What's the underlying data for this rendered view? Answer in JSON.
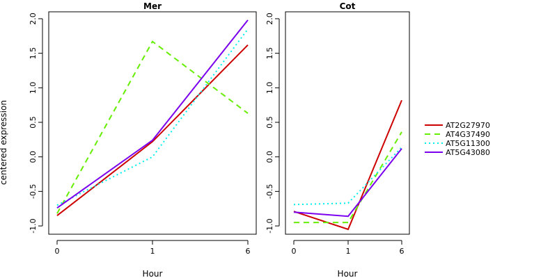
{
  "colors": {
    "AT2G27970": "#cd0000",
    "AT4G37490": "#66ee00",
    "AT5G11300": "#00eeee",
    "AT5G43080": "#7a00ee"
  },
  "chart_data": {
    "type": "line",
    "ylabel": "centered expression",
    "legend": {
      "placement": "right",
      "entries": [
        "AT2G27970",
        "AT4G37490",
        "AT5G11300",
        "AT5G43080"
      ]
    },
    "panels": [
      {
        "title": "Mer",
        "xlabel": "Hour",
        "x_ticks": [
          "0",
          "1",
          "6"
        ],
        "ylim": [
          -1.0,
          2.0
        ],
        "y_ticks": [
          "-1.0",
          "-0.5",
          "0.0",
          "0.5",
          "1.0",
          "1.5",
          "2.0"
        ],
        "series": [
          {
            "name": "AT2G27970",
            "values": [
              -0.85,
              0.22,
              1.62
            ]
          },
          {
            "name": "AT4G37490",
            "values": [
              -0.82,
              1.67,
              0.63
            ]
          },
          {
            "name": "AT5G11300",
            "values": [
              -0.7,
              0.0,
              1.85
            ]
          },
          {
            "name": "AT5G43080",
            "values": [
              -0.74,
              0.24,
              1.98
            ]
          }
        ]
      },
      {
        "title": "Cot",
        "xlabel": "Hour",
        "x_ticks": [
          "0",
          "1",
          "6"
        ],
        "ylim": [
          -1.0,
          2.0
        ],
        "y_ticks": [
          "-1.0",
          "-0.5",
          "0.0",
          "0.5",
          "1.0",
          "1.5",
          "2.0"
        ],
        "series": [
          {
            "name": "AT2G27970",
            "values": [
              -0.79,
              -1.05,
              0.82
            ]
          },
          {
            "name": "AT4G37490",
            "values": [
              -0.95,
              -0.95,
              0.36
            ]
          },
          {
            "name": "AT5G11300",
            "values": [
              -0.69,
              -0.67,
              0.14
            ]
          },
          {
            "name": "AT5G43080",
            "values": [
              -0.8,
              -0.86,
              0.12
            ]
          }
        ]
      }
    ]
  }
}
